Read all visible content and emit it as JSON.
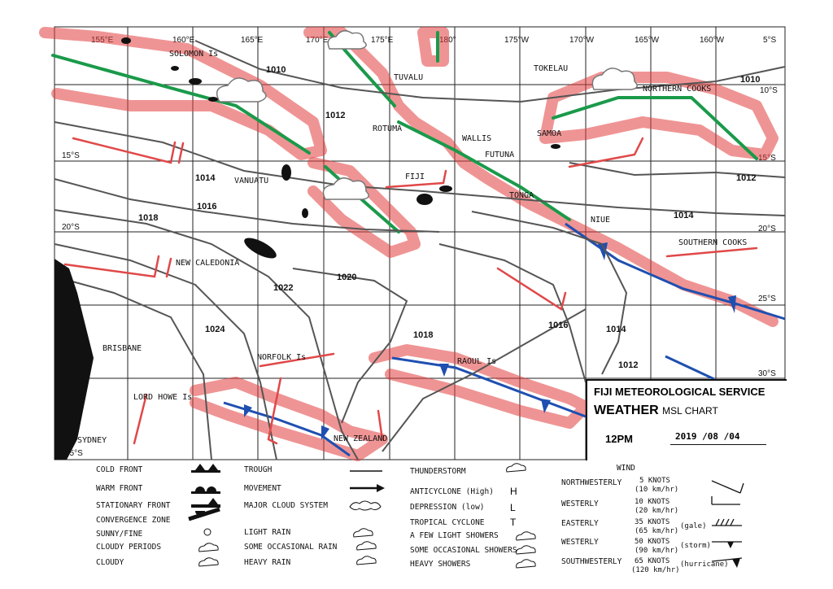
{
  "grid": {
    "longitudes": [
      "155°E",
      "160°E",
      "165°E",
      "170°E",
      "175°E",
      "180°",
      "175°W",
      "170°W",
      "165°W",
      "160°W"
    ],
    "latitudes": [
      "5°S",
      "10°S",
      "15°S",
      "20°S",
      "25°S",
      "30°S",
      "35°S"
    ]
  },
  "places": [
    "SOLOMON Is",
    "TUVALU",
    "TOKELAU",
    "NORTHERN COOKS",
    "ROTUMA",
    "WALLIS",
    "FUTUNA",
    "SAMOA",
    "FIJI",
    "TONGA",
    "VANUATU",
    "NIUE",
    "SOUTHERN COOKS",
    "NEW CALEDONIA",
    "BRISBANE",
    "NORFOLK Is",
    "RAOUL Is",
    "LORD HOWE Is",
    "NEW ZEALAND",
    "SYDNEY"
  ],
  "isobars": [
    "1010",
    "1010",
    "1012",
    "1012",
    "1014",
    "1014",
    "1014",
    "1016",
    "1016",
    "1018",
    "1018",
    "1020",
    "1022",
    "1024",
    "1012"
  ],
  "title_block": {
    "org": "FIJI METEOROLOGICAL SERVICE",
    "title_main": "WEATHER",
    "title_sub": "MSL CHART",
    "time": "12PM",
    "date": "2019 /08 /04"
  },
  "legend": {
    "symbols": [
      "COLD FRONT",
      "WARM FRONT",
      "STATIONARY FRONT",
      "CONVERGENCE ZONE",
      "SUNNY/FINE",
      "CLOUDY PERIODS",
      "CLOUDY"
    ],
    "trough": [
      "TROUGH",
      "MOVEMENT",
      "MAJOR CLOUD SYSTEM",
      "LIGHT RAIN",
      "SOME OCCASIONAL RAIN",
      "HEAVY RAIN"
    ],
    "weather": [
      "THUNDERSTORM",
      "ANTICYCLONE (High)",
      "DEPRESSION (low)",
      "TROPICAL CYCLONE",
      "A FEW LIGHT SHOWERS",
      "SOME OCCASIONAL SHOWERS",
      "HEAVY SHOWERS"
    ],
    "wind_title": "WIND",
    "wind_dirs": [
      "NORTHWESTERLY",
      "WESTERLY",
      "EASTERLY",
      "WESTERLY",
      "SOUTHWESTERLY"
    ],
    "wind_speeds": [
      "5 KNOTS",
      "(10 km/hr)",
      "10 KNOTS",
      "(20 km/hr)",
      "35 KNOTS",
      "(65 km/hr)",
      "50 KNOTS",
      "(90 km/hr)",
      "65 KNOTS",
      "(120 km/hr)"
    ],
    "wind_notes": [
      "(gale)",
      "(storm)",
      "(hurricane)"
    ]
  },
  "colors": {
    "front_cold": "#1f4fb0",
    "convergence": "#1a9a4a",
    "cloud_band": "#e23c3c",
    "isobar": "#555555",
    "land": "#111111"
  }
}
